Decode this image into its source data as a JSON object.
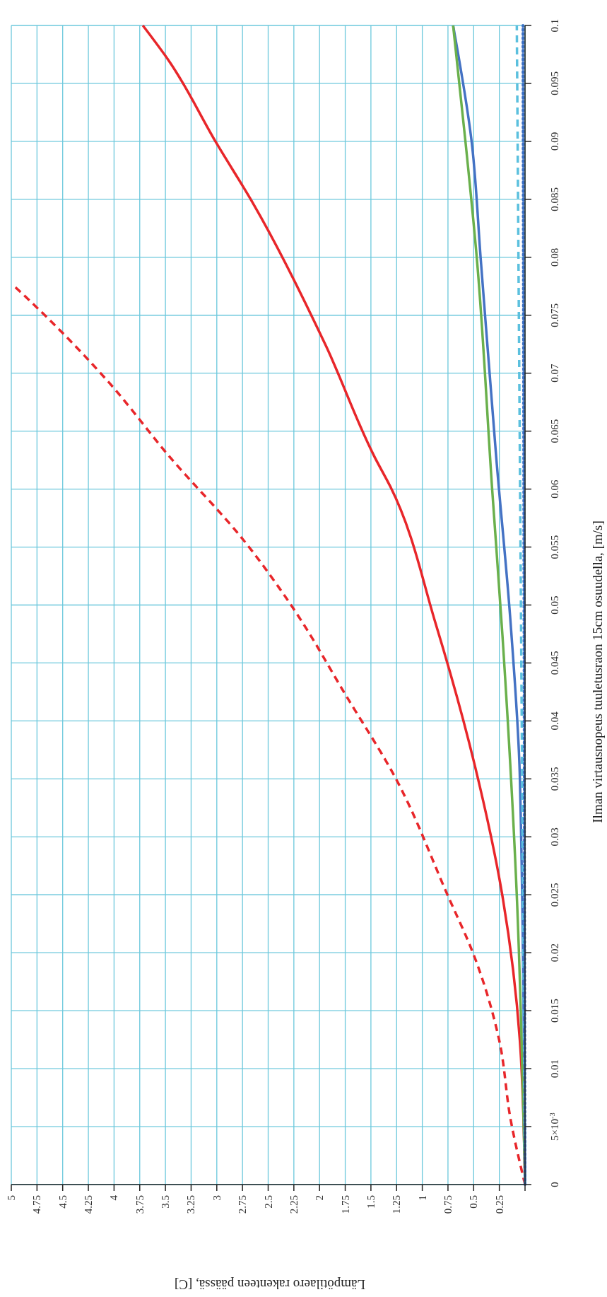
{
  "chart_data": {
    "type": "line",
    "xlabel": "Lämpötilaero rakenteen päässä, [C]",
    "ylabel": "Ilman virtausnopeus tuuletusraon 15cm osuudella, [m/s]",
    "xlim": [
      5,
      0
    ],
    "ylim": [
      0,
      0.1
    ],
    "xticks": [
      5,
      4.75,
      4.5,
      4.25,
      4,
      3.75,
      3.5,
      3.25,
      3,
      2.75,
      2.5,
      2.25,
      2,
      1.75,
      1.5,
      1.25,
      1,
      0.75,
      0.5,
      0.25,
      {
        "value": 0,
        "label": null
      }
    ],
    "yticks": [
      0,
      {
        "value": 0.005,
        "label": "5×10$^{-3}$"
      },
      0.01,
      0.015,
      0.02,
      0.025,
      0.03,
      0.035,
      0.04,
      0.045,
      0.05,
      0.055,
      0.06,
      0.065,
      0.07,
      0.075,
      0.08,
      0.085,
      0.09,
      0.095,
      0.1
    ],
    "grid": true,
    "series": [
      {
        "color": "#e8262a",
        "line_style": "dashed",
        "x": [
          0,
          0.14,
          0.25,
          0.49,
          0.76,
          1.25,
          1.75,
          2.24,
          2.74,
          3.47,
          4.04,
          4.72,
          4.97
        ],
        "values": [
          0,
          0.0056,
          0.0124,
          0.0196,
          0.0251,
          0.0349,
          0.0423,
          0.0495,
          0.0556,
          0.0629,
          0.0691,
          0.0754,
          0.0775
        ]
      },
      {
        "color": "#e8262a",
        "line_style": "solid",
        "x": [
          0,
          0.05,
          0.22,
          0.49,
          0.87,
          1.31,
          1.46,
          1.94,
          2.65,
          3.0,
          3.47,
          3.72
        ],
        "values": [
          0,
          0.0124,
          0.0249,
          0.0362,
          0.0484,
          0.0602,
          0.0627,
          0.0724,
          0.0847,
          0.0898,
          0.097,
          0.1
        ]
      },
      {
        "color": "#4472c4",
        "line_style": "solid",
        "x": [
          0,
          0.05,
          0.14,
          0.28,
          0.43,
          0.52,
          0.7
        ],
        "values": [
          0,
          0.035,
          0.0484,
          0.0627,
          0.0797,
          0.09,
          0.1
        ]
      },
      {
        "color": "#6ab04c",
        "line_style": "solid",
        "x": [
          0,
          0.08,
          0.22,
          0.32,
          0.47,
          0.58,
          0.7
        ],
        "values": [
          0,
          0.0249,
          0.0474,
          0.06,
          0.08,
          0.09,
          0.1
        ]
      },
      {
        "color": "#5bc0de",
        "line_style": "dashed",
        "x": [
          0,
          0.04,
          0.08
        ],
        "values": [
          0,
          0.05,
          0.1
        ]
      },
      {
        "color": "#3a6fc4",
        "line_style": "dotted",
        "x": [
          0,
          0.01,
          0.02
        ],
        "values": [
          0,
          0.05,
          0.1
        ]
      }
    ]
  }
}
